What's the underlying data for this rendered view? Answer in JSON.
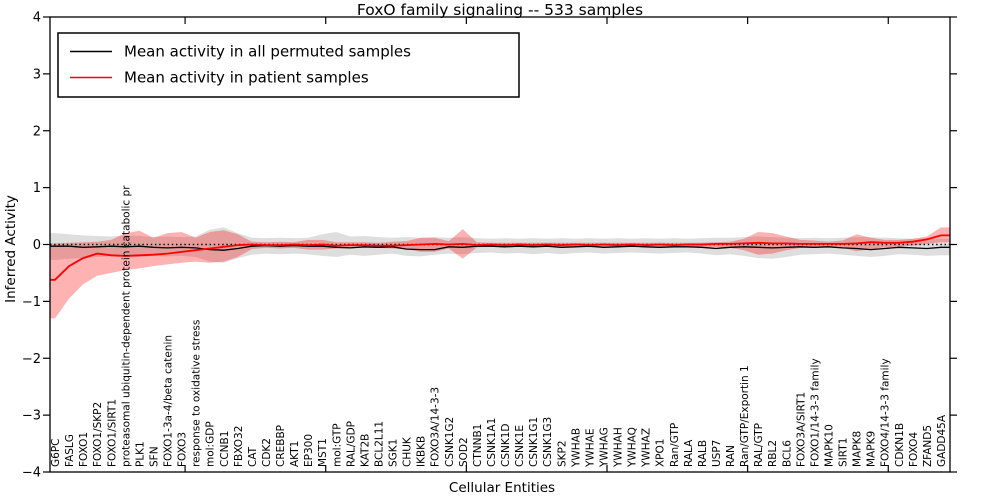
{
  "title": "FoxO family signaling -- 533 samples",
  "legend": {
    "items": [
      {
        "label": "Mean activity in all permuted samples",
        "color": "#000000"
      },
      {
        "label": "Mean activity in patient samples",
        "color": "#ff0000"
      }
    ],
    "position": "upper left"
  },
  "chart_data": {
    "type": "line",
    "title": "FoxO family signaling -- 533 samples",
    "xlabel": "Cellular Entities",
    "ylabel": "Inferred Activity",
    "ylim": [
      -4,
      4
    ],
    "yticks": [
      -4,
      -3,
      -2,
      -1,
      0,
      1,
      2,
      3,
      4
    ],
    "xtick_indices": [
      9.25,
      19.25,
      29.25,
      39.25,
      49.25,
      59.25
    ],
    "grid": false,
    "legend_position": "upper left",
    "zero_line": {
      "value": 0,
      "style": "dotted",
      "color": "#000000"
    },
    "categories": [
      "G6PC",
      "FASLG",
      "FOXO1",
      "FOXO1/SKP2",
      "FOXO1/SIRT1",
      "proteasomal ubiquitin-dependent protein catabolic pr",
      "PLK1",
      "SFN",
      "FOXO1-3a-4/beta catenin",
      "FOXO3",
      "response to oxidative stress",
      "mol:GDP",
      "CCNB1",
      "FBXO32",
      "CAT",
      "CDK2",
      "CREBBP",
      "AKT1",
      "EP300",
      "MST1",
      "mol:GTP",
      "RAL/GDP",
      "KAT2B",
      "BCL2L11",
      "SGK1",
      "CHUK",
      "IKBKB",
      "FOXO3A/14-3-3",
      "CSNK1G2",
      "SOD2",
      "CTNNB1",
      "CSNK1A1",
      "CSNK1D",
      "CSNK1E",
      "CSNK1G1",
      "CSNK1G3",
      "SKP2",
      "YWHAB",
      "YWHAE",
      "YWHAG",
      "YWHAH",
      "YWHAQ",
      "YWHAZ",
      "XPO1",
      "Ran/GTP",
      "RALA",
      "RALB",
      "USP7",
      "RAN",
      "Ran/GTP/Exportin 1",
      "RAL/GTP",
      "RBL2",
      "BCL6",
      "FOXO3A/SIRT1",
      "FOXO1/14-3-3 family",
      "MAPK10",
      "SIRT1",
      "MAPK8",
      "MAPK9",
      "FOXO4/14-3-3 family",
      "CDKN1B",
      "FOXO4",
      "ZFAND5",
      "GADD45A"
    ],
    "series": [
      {
        "name": "Mean activity in all permuted samples",
        "color": "#000000",
        "values": [
          -0.03,
          -0.03,
          -0.05,
          -0.04,
          -0.03,
          -0.04,
          -0.03,
          -0.05,
          -0.06,
          -0.05,
          -0.06,
          -0.09,
          -0.1,
          -0.07,
          -0.03,
          -0.02,
          -0.03,
          -0.02,
          -0.03,
          -0.03,
          -0.05,
          -0.06,
          -0.04,
          -0.05,
          -0.04,
          -0.08,
          -0.09,
          -0.09,
          -0.04,
          -0.05,
          -0.03,
          -0.03,
          -0.04,
          -0.03,
          -0.04,
          -0.03,
          -0.05,
          -0.04,
          -0.03,
          -0.05,
          -0.04,
          -0.03,
          -0.04,
          -0.05,
          -0.04,
          -0.04,
          -0.05,
          -0.07,
          -0.05,
          -0.04,
          -0.05,
          -0.06,
          -0.05,
          -0.04,
          -0.05,
          -0.04,
          -0.06,
          -0.07,
          -0.09,
          -0.07,
          -0.05,
          -0.06,
          -0.07,
          -0.05
        ]
      },
      {
        "name": "Mean activity in patient samples",
        "color": "#ff0000",
        "values": [
          -0.62,
          -0.38,
          -0.24,
          -0.16,
          -0.19,
          -0.2,
          -0.19,
          -0.18,
          -0.16,
          -0.13,
          -0.1,
          -0.07,
          -0.04,
          -0.01,
          0.0,
          -0.01,
          -0.01,
          0.0,
          -0.01,
          0.0,
          -0.02,
          -0.01,
          -0.01,
          -0.02,
          -0.02,
          -0.01,
          0.0,
          0.01,
          0.0,
          0.01,
          -0.01,
          0.0,
          -0.01,
          0.0,
          -0.01,
          0.0,
          -0.01,
          0.0,
          -0.01,
          0.0,
          -0.01,
          0.0,
          -0.01,
          0.0,
          -0.01,
          0.0,
          0.0,
          0.01,
          0.01,
          0.02,
          0.03,
          0.02,
          0.02,
          0.01,
          0.01,
          0.01,
          0.01,
          0.02,
          0.04,
          0.03,
          0.03,
          0.05,
          0.09,
          0.16
        ]
      }
    ],
    "bands": [
      {
        "name": "permuted samples range",
        "fill": "rgba(0,0,0,0.13)",
        "upper": [
          0.2,
          0.18,
          0.16,
          0.15,
          0.14,
          0.16,
          0.15,
          0.13,
          0.14,
          0.13,
          0.14,
          0.26,
          0.3,
          0.2,
          0.12,
          0.11,
          0.12,
          0.11,
          0.12,
          0.18,
          0.22,
          0.14,
          0.15,
          0.13,
          0.12,
          0.13,
          0.12,
          0.13,
          0.12,
          0.13,
          0.11,
          0.1,
          0.11,
          0.1,
          0.11,
          0.1,
          0.11,
          0.1,
          0.11,
          0.1,
          0.11,
          0.1,
          0.11,
          0.1,
          0.11,
          0.1,
          0.11,
          0.12,
          0.12,
          0.13,
          0.14,
          0.13,
          0.12,
          0.11,
          0.12,
          0.11,
          0.12,
          0.13,
          0.13,
          0.12,
          0.11,
          0.1,
          0.11,
          0.1
        ],
        "lower": [
          -0.27,
          -0.25,
          -0.24,
          -0.22,
          -0.21,
          -0.23,
          -0.22,
          -0.2,
          -0.21,
          -0.2,
          -0.22,
          -0.3,
          -0.32,
          -0.24,
          -0.18,
          -0.16,
          -0.17,
          -0.16,
          -0.17,
          -0.2,
          -0.22,
          -0.18,
          -0.2,
          -0.18,
          -0.16,
          -0.2,
          -0.21,
          -0.18,
          -0.16,
          -0.17,
          -0.15,
          -0.14,
          -0.16,
          -0.15,
          -0.17,
          -0.15,
          -0.17,
          -0.15,
          -0.14,
          -0.16,
          -0.15,
          -0.14,
          -0.15,
          -0.16,
          -0.15,
          -0.14,
          -0.16,
          -0.19,
          -0.17,
          -0.2,
          -0.24,
          -0.25,
          -0.22,
          -0.18,
          -0.17,
          -0.16,
          -0.18,
          -0.2,
          -0.22,
          -0.2,
          -0.17,
          -0.18,
          -0.2,
          -0.19
        ]
      },
      {
        "name": "patient samples range",
        "fill": "rgba(255,0,0,0.30)",
        "upper": [
          0.02,
          0.03,
          0.04,
          0.05,
          0.08,
          0.2,
          0.24,
          0.12,
          0.2,
          0.22,
          0.12,
          0.22,
          0.25,
          0.18,
          0.05,
          0.04,
          0.05,
          0.04,
          0.08,
          0.08,
          0.04,
          0.04,
          0.04,
          0.03,
          0.05,
          0.06,
          0.12,
          0.12,
          0.06,
          0.27,
          0.04,
          0.03,
          0.03,
          0.03,
          0.03,
          0.03,
          0.03,
          0.03,
          0.03,
          0.03,
          0.03,
          0.03,
          0.03,
          0.03,
          0.03,
          0.03,
          0.03,
          0.04,
          0.05,
          0.1,
          0.22,
          0.2,
          0.14,
          0.08,
          0.07,
          0.05,
          0.07,
          0.18,
          0.12,
          0.08,
          0.08,
          0.1,
          0.14,
          0.3
        ],
        "lower": [
          -1.3,
          -0.95,
          -0.7,
          -0.55,
          -0.5,
          -0.45,
          -0.42,
          -0.38,
          -0.35,
          -0.32,
          -0.3,
          -0.32,
          -0.3,
          -0.22,
          -0.08,
          -0.06,
          -0.07,
          -0.06,
          -0.09,
          -0.09,
          -0.07,
          -0.06,
          -0.06,
          -0.06,
          -0.07,
          -0.08,
          -0.13,
          -0.13,
          -0.07,
          -0.25,
          -0.05,
          -0.04,
          -0.05,
          -0.04,
          -0.05,
          -0.04,
          -0.05,
          -0.04,
          -0.05,
          -0.04,
          -0.05,
          -0.04,
          -0.05,
          -0.04,
          -0.05,
          -0.04,
          -0.05,
          -0.05,
          -0.06,
          -0.1,
          -0.18,
          -0.16,
          -0.1,
          -0.06,
          -0.06,
          -0.04,
          -0.06,
          -0.12,
          -0.08,
          -0.05,
          -0.04,
          -0.02,
          0.01,
          0.04
        ]
      }
    ]
  }
}
